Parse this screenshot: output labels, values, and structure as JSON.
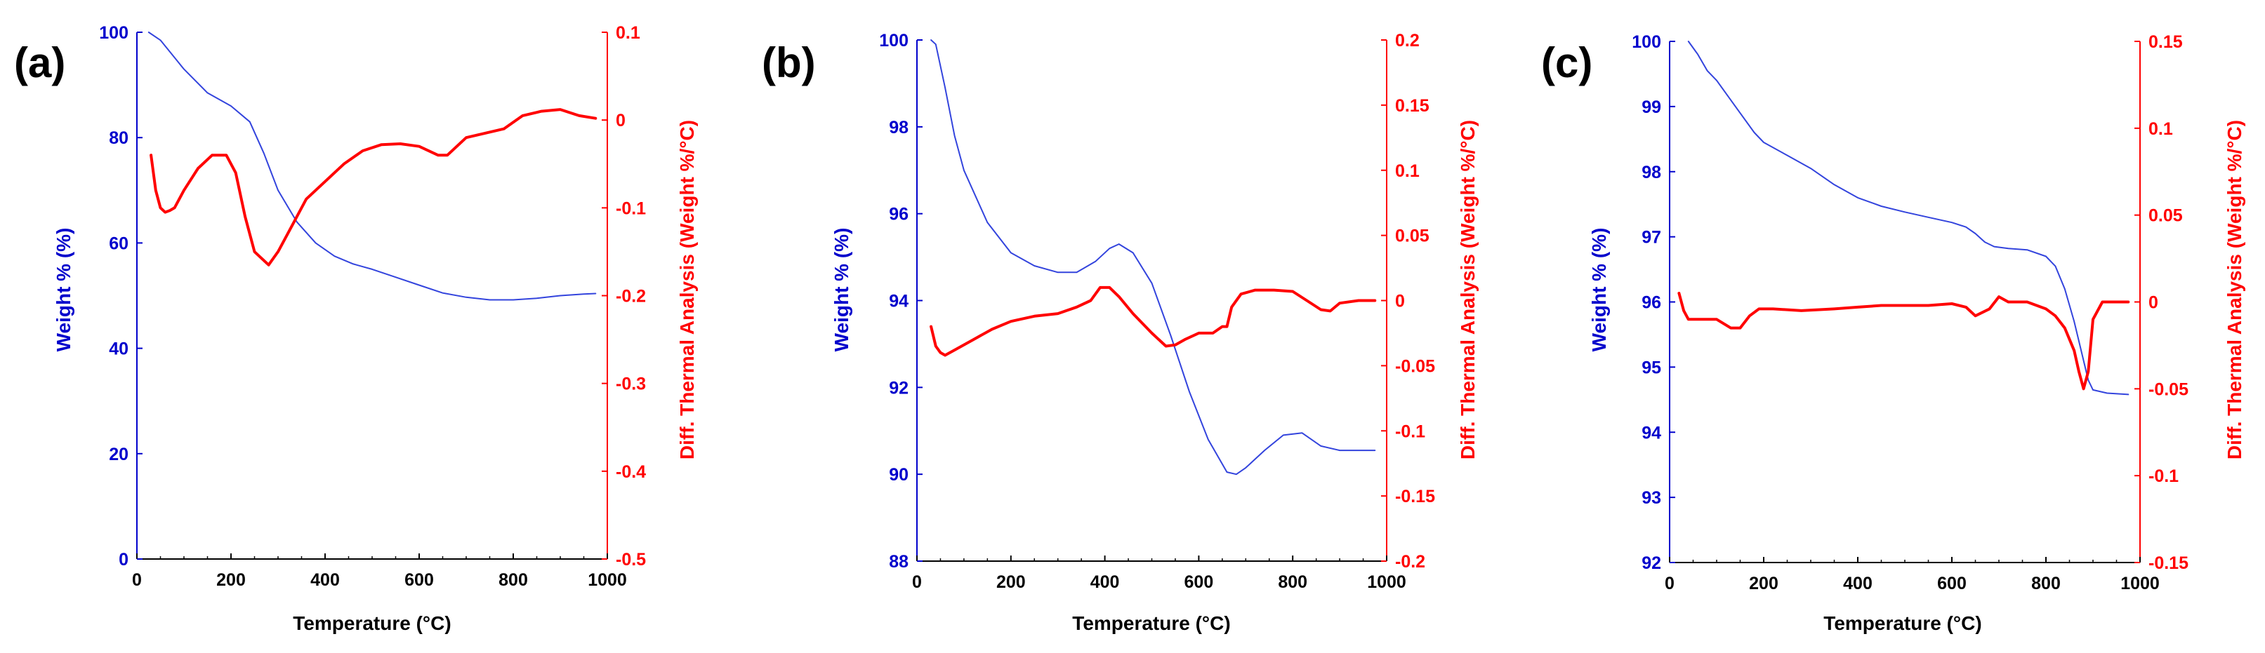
{
  "chart_data": [
    {
      "type": "line",
      "panel_label": "(a)",
      "xlabel": "Temperature (°C)",
      "ylabel_left": "Weight % (%)",
      "ylabel_right": "Diff. Thermal Analysis (Weight %/°C)",
      "xlim": [
        0,
        1000
      ],
      "xticks": [
        0,
        200,
        400,
        600,
        800,
        1000
      ],
      "ylim_left": [
        0,
        100
      ],
      "yticks_left": [
        0,
        20,
        40,
        60,
        80,
        100
      ],
      "ylim_right": [
        -0.5,
        0.1
      ],
      "yticks_right": [
        -0.5,
        -0.4,
        -0.3,
        -0.2,
        -0.1,
        0,
        0.1
      ],
      "colors": {
        "left": "#0000cc",
        "right": "#ff0000",
        "weight_line": "#3344dd",
        "dta_line": "#ff0000"
      },
      "series": [
        {
          "name": "Weight %",
          "axis": "left",
          "x": [
            25,
            50,
            100,
            150,
            200,
            240,
            270,
            300,
            340,
            380,
            420,
            460,
            500,
            550,
            600,
            650,
            700,
            750,
            800,
            850,
            900,
            950,
            975
          ],
          "y": [
            100,
            98.5,
            93,
            88.5,
            86,
            83,
            77,
            70,
            64,
            60,
            57.5,
            56,
            55,
            53.5,
            52,
            50.5,
            49.7,
            49.2,
            49.2,
            49.5,
            50,
            50.3,
            50.4
          ]
        },
        {
          "name": "DTA",
          "axis": "right",
          "x": [
            30,
            40,
            50,
            60,
            70,
            80,
            100,
            130,
            160,
            190,
            210,
            230,
            250,
            270,
            280,
            300,
            330,
            360,
            400,
            440,
            480,
            520,
            560,
            600,
            640,
            660,
            680,
            700,
            740,
            780,
            820,
            860,
            900,
            940,
            975
          ],
          "y": [
            -0.04,
            -0.08,
            -0.1,
            -0.105,
            -0.103,
            -0.1,
            -0.08,
            -0.055,
            -0.04,
            -0.04,
            -0.06,
            -0.11,
            -0.15,
            -0.16,
            -0.165,
            -0.15,
            -0.12,
            -0.09,
            -0.07,
            -0.05,
            -0.035,
            -0.028,
            -0.027,
            -0.03,
            -0.04,
            -0.04,
            -0.03,
            -0.02,
            -0.015,
            -0.01,
            0.005,
            0.01,
            0.012,
            0.005,
            0.002
          ]
        }
      ]
    },
    {
      "type": "line",
      "panel_label": "(b)",
      "xlabel": "Temperature (°C)",
      "ylabel_left": "Weight % (%)",
      "ylabel_right": "Diff. Thermal Analysis (Weight %/°C)",
      "xlim": [
        0,
        1000
      ],
      "xticks": [
        0,
        200,
        400,
        600,
        800,
        1000
      ],
      "ylim_left": [
        88,
        100
      ],
      "yticks_left": [
        88,
        90,
        92,
        94,
        96,
        98,
        100
      ],
      "ylim_right": [
        -0.2,
        0.2
      ],
      "yticks_right": [
        -0.2,
        -0.15,
        -0.1,
        -0.05,
        0,
        0.05,
        0.1,
        0.15,
        0.2
      ],
      "colors": {
        "left": "#0000cc",
        "right": "#ff0000",
        "weight_line": "#3344dd",
        "dta_line": "#ff0000"
      },
      "series": [
        {
          "name": "Weight %",
          "axis": "left",
          "x": [
            30,
            40,
            60,
            80,
            100,
            150,
            200,
            250,
            300,
            340,
            380,
            410,
            430,
            460,
            500,
            540,
            580,
            620,
            660,
            680,
            700,
            740,
            780,
            820,
            860,
            900,
            975
          ],
          "y": [
            100,
            99.9,
            98.9,
            97.8,
            97,
            95.8,
            95.1,
            94.8,
            94.65,
            94.65,
            94.9,
            95.2,
            95.3,
            95.1,
            94.4,
            93.2,
            91.9,
            90.8,
            90.05,
            90,
            90.15,
            90.55,
            90.9,
            90.95,
            90.65,
            90.55,
            90.55
          ]
        },
        {
          "name": "DTA",
          "axis": "right",
          "x": [
            30,
            40,
            50,
            60,
            80,
            120,
            160,
            200,
            250,
            300,
            340,
            370,
            390,
            410,
            430,
            460,
            500,
            530,
            550,
            570,
            600,
            630,
            650,
            660,
            670,
            690,
            720,
            760,
            800,
            830,
            860,
            880,
            900,
            940,
            975
          ],
          "y": [
            -0.02,
            -0.035,
            -0.04,
            -0.042,
            -0.038,
            -0.03,
            -0.022,
            -0.016,
            -0.012,
            -0.01,
            -0.005,
            0,
            0.01,
            0.01,
            0.003,
            -0.01,
            -0.025,
            -0.035,
            -0.034,
            -0.03,
            -0.025,
            -0.025,
            -0.02,
            -0.02,
            -0.005,
            0.005,
            0.008,
            0.008,
            0.007,
            0,
            -0.007,
            -0.008,
            -0.002,
            0,
            0
          ]
        }
      ]
    },
    {
      "type": "line",
      "panel_label": "(c)",
      "xlabel": "Temperature (°C)",
      "ylabel_left": "Weight % (%)",
      "ylabel_right": "Diff. Thermal Analysis (Weight %/°C)",
      "xlim": [
        0,
        1000
      ],
      "xticks": [
        0,
        200,
        400,
        600,
        800,
        1000
      ],
      "ylim_left": [
        92,
        100
      ],
      "yticks_left": [
        92,
        93,
        94,
        95,
        96,
        97,
        98,
        99,
        100
      ],
      "ylim_right": [
        -0.15,
        0.15
      ],
      "yticks_right": [
        -0.15,
        -0.1,
        -0.05,
        0,
        0.05,
        0.1,
        0.15
      ],
      "colors": {
        "left": "#0000cc",
        "right": "#ff0000",
        "weight_line": "#3344dd",
        "dta_line": "#ff0000"
      },
      "series": [
        {
          "name": "Weight %",
          "axis": "left",
          "x": [
            40,
            60,
            80,
            100,
            120,
            150,
            180,
            200,
            250,
            300,
            350,
            400,
            450,
            500,
            550,
            600,
            630,
            650,
            670,
            690,
            720,
            760,
            800,
            820,
            840,
            860,
            880,
            890,
            900,
            930,
            975
          ],
          "y": [
            100,
            99.8,
            99.55,
            99.4,
            99.2,
            98.9,
            98.6,
            98.45,
            98.25,
            98.05,
            97.8,
            97.6,
            97.47,
            97.38,
            97.3,
            97.22,
            97.15,
            97.05,
            96.92,
            96.85,
            96.82,
            96.8,
            96.7,
            96.55,
            96.2,
            95.7,
            95.1,
            94.8,
            94.65,
            94.6,
            94.58
          ]
        },
        {
          "name": "DTA",
          "axis": "right",
          "x": [
            20,
            30,
            40,
            60,
            100,
            130,
            150,
            170,
            190,
            220,
            280,
            350,
            400,
            450,
            500,
            550,
            600,
            630,
            650,
            680,
            700,
            720,
            760,
            800,
            820,
            840,
            860,
            870,
            880,
            890,
            900,
            920,
            950,
            975
          ],
          "y": [
            0.005,
            -0.005,
            -0.01,
            -0.01,
            -0.01,
            -0.015,
            -0.015,
            -0.008,
            -0.004,
            -0.004,
            -0.005,
            -0.004,
            -0.003,
            -0.002,
            -0.002,
            -0.002,
            -0.001,
            -0.003,
            -0.008,
            -0.004,
            0.003,
            0,
            0,
            -0.004,
            -0.008,
            -0.015,
            -0.028,
            -0.04,
            -0.05,
            -0.04,
            -0.01,
            0,
            0,
            0
          ]
        }
      ]
    }
  ]
}
